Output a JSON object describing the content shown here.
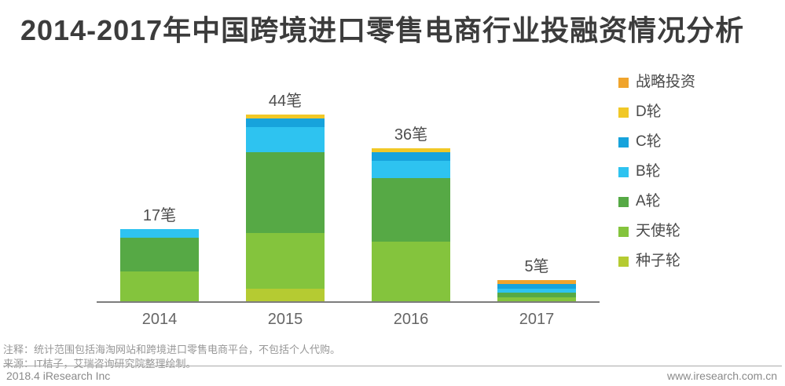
{
  "title": "2014-2017年中国跨境进口零售电商行业投融资情况分析",
  "chart_data": {
    "type": "bar",
    "stacked": true,
    "title": "2014-2017年中国跨境进口零售电商行业投融资情况分析",
    "categories": [
      "2014",
      "2015",
      "2016",
      "2017"
    ],
    "bar_labels": [
      "17笔",
      "44笔",
      "36笔",
      "5笔"
    ],
    "totals": [
      17,
      44,
      36,
      5
    ],
    "unit": "笔",
    "series": [
      {
        "name": "种子轮",
        "color": "#B5CB32",
        "values": [
          0,
          3,
          0,
          0
        ]
      },
      {
        "name": "天使轮",
        "color": "#84C43D",
        "values": [
          7,
          13,
          14,
          1
        ]
      },
      {
        "name": "A轮",
        "color": "#56A945",
        "values": [
          8,
          19,
          15,
          1
        ]
      },
      {
        "name": "B轮",
        "color": "#2EC3F0",
        "values": [
          2,
          6,
          4,
          1
        ]
      },
      {
        "name": "C轮",
        "color": "#17A3DC",
        "values": [
          0,
          2,
          2,
          1
        ]
      },
      {
        "name": "D轮",
        "color": "#F1C827",
        "values": [
          0,
          1,
          1,
          0
        ]
      },
      {
        "name": "战略投资",
        "color": "#F0A42C",
        "values": [
          0,
          0,
          0,
          1
        ]
      }
    ],
    "legend_position": "right",
    "legend_order_top_to_bottom": [
      "战略投资",
      "D轮",
      "C轮",
      "B轮",
      "A轮",
      "天使轮",
      "种子轮"
    ],
    "grid": false,
    "y_axis_shown": false,
    "axis_color": "#7d7d7d"
  },
  "notes": {
    "line1": "注释：统计范围包括海淘网站和跨境进口零售电商平台，不包括个人代购。",
    "line2": "来源：IT桔子，艾瑞咨询研究院整理绘制。"
  },
  "footer": {
    "left": "2018.4 iResearch Inc",
    "right": "www.iresearch.com.cn"
  },
  "colors": {
    "title_text": "#3C3C3C",
    "count_text": "#4D4D4D",
    "tick_text": "#666666",
    "legend_text": "#4A4A4A",
    "note_text": "#979797",
    "footer_text": "#8A8A8A",
    "rule": "#A9A9A9"
  }
}
